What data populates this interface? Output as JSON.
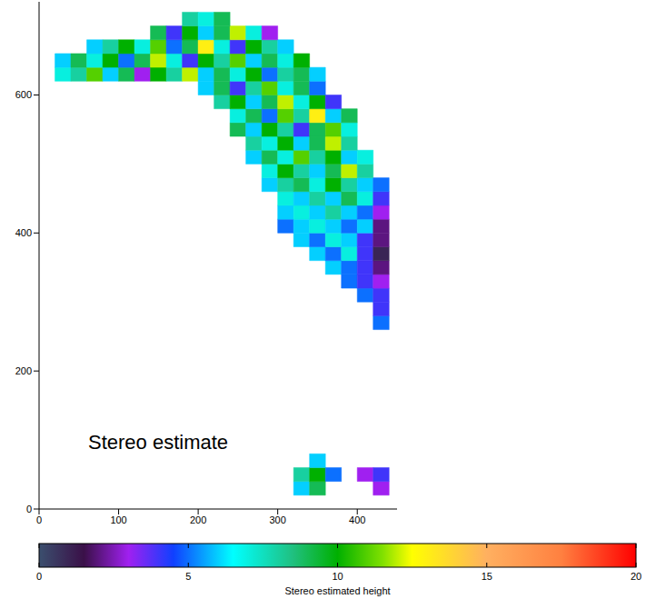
{
  "chart_data": {
    "type": "heatmap",
    "annotation": "Stereo estimate",
    "xlim": [
      0,
      450
    ],
    "ylim": [
      0,
      735
    ],
    "xticks": [
      0,
      100,
      200,
      300,
      400
    ],
    "yticks": [
      0,
      200,
      400,
      600
    ],
    "x_edges": [
      0,
      20,
      40,
      60,
      80,
      100,
      120,
      140,
      160,
      180,
      200,
      220,
      240,
      260,
      280,
      300,
      320,
      340,
      360,
      380,
      400,
      420,
      440
    ],
    "y_edges": [
      0,
      20,
      40,
      60,
      80,
      100,
      120,
      140,
      160,
      180,
      200,
      220,
      240,
      260,
      280,
      300,
      320,
      340,
      360,
      380,
      400,
      420,
      440,
      460,
      480,
      500,
      520,
      540,
      560,
      580,
      600,
      620,
      640,
      660,
      680,
      700,
      720
    ],
    "cells": [
      [
        null,
        null,
        null,
        null,
        null,
        null,
        null,
        null,
        null,
        null,
        null,
        null,
        null,
        null,
        null,
        null,
        null,
        null,
        null,
        null,
        null,
        null
      ],
      [
        null,
        null,
        null,
        null,
        null,
        null,
        null,
        null,
        null,
        null,
        null,
        null,
        null,
        null,
        null,
        null,
        6,
        9,
        null,
        null,
        null,
        3
      ],
      [
        null,
        null,
        null,
        null,
        null,
        null,
        null,
        null,
        null,
        null,
        null,
        null,
        null,
        null,
        null,
        null,
        8,
        10,
        5,
        null,
        3,
        4
      ],
      [
        null,
        null,
        null,
        null,
        null,
        null,
        null,
        null,
        null,
        null,
        null,
        null,
        null,
        null,
        null,
        null,
        null,
        6,
        null,
        null,
        null,
        null
      ],
      [
        null,
        null,
        null,
        null,
        null,
        null,
        null,
        null,
        null,
        null,
        null,
        null,
        null,
        null,
        null,
        null,
        null,
        null,
        null,
        null,
        null,
        null
      ],
      [
        null,
        null,
        null,
        null,
        null,
        null,
        null,
        null,
        null,
        null,
        null,
        null,
        null,
        null,
        null,
        null,
        null,
        null,
        null,
        null,
        null,
        null
      ],
      [
        null,
        null,
        null,
        null,
        null,
        null,
        null,
        null,
        null,
        null,
        null,
        null,
        null,
        null,
        null,
        null,
        null,
        null,
        null,
        null,
        null,
        null
      ],
      [
        null,
        null,
        null,
        null,
        null,
        null,
        null,
        null,
        null,
        null,
        null,
        null,
        null,
        null,
        null,
        null,
        null,
        null,
        null,
        null,
        null,
        null
      ],
      [
        null,
        null,
        null,
        null,
        null,
        null,
        null,
        null,
        null,
        null,
        null,
        null,
        null,
        null,
        null,
        null,
        null,
        null,
        null,
        null,
        null,
        null
      ],
      [
        null,
        null,
        null,
        null,
        null,
        null,
        null,
        null,
        null,
        null,
        null,
        null,
        null,
        null,
        null,
        null,
        null,
        null,
        null,
        null,
        null,
        null
      ],
      [
        null,
        null,
        null,
        null,
        null,
        null,
        null,
        null,
        null,
        null,
        null,
        null,
        null,
        null,
        null,
        null,
        null,
        null,
        null,
        null,
        null,
        null
      ],
      [
        null,
        null,
        null,
        null,
        null,
        null,
        null,
        null,
        null,
        null,
        null,
        null,
        null,
        null,
        null,
        null,
        null,
        null,
        null,
        null,
        null,
        null
      ],
      [
        null,
        null,
        null,
        null,
        null,
        null,
        null,
        null,
        null,
        null,
        null,
        null,
        null,
        null,
        null,
        null,
        null,
        null,
        null,
        null,
        null,
        null
      ],
      [
        null,
        null,
        null,
        null,
        null,
        null,
        null,
        null,
        null,
        null,
        null,
        null,
        null,
        null,
        null,
        null,
        null,
        null,
        null,
        null,
        null,
        5
      ],
      [
        null,
        null,
        null,
        null,
        null,
        null,
        null,
        null,
        null,
        null,
        null,
        null,
        null,
        null,
        null,
        null,
        null,
        null,
        null,
        null,
        null,
        4
      ],
      [
        null,
        null,
        null,
        null,
        null,
        null,
        null,
        null,
        null,
        null,
        null,
        null,
        null,
        null,
        null,
        null,
        null,
        null,
        null,
        null,
        5,
        4
      ],
      [
        null,
        null,
        null,
        null,
        null,
        null,
        null,
        null,
        null,
        null,
        null,
        null,
        null,
        null,
        null,
        null,
        null,
        null,
        null,
        5,
        4,
        3
      ],
      [
        null,
        null,
        null,
        null,
        null,
        null,
        null,
        null,
        null,
        null,
        null,
        null,
        null,
        null,
        null,
        null,
        null,
        null,
        6,
        5,
        4,
        2
      ],
      [
        null,
        null,
        null,
        null,
        null,
        null,
        null,
        null,
        null,
        null,
        null,
        null,
        null,
        null,
        null,
        null,
        null,
        6,
        5,
        7,
        4,
        1
      ],
      [
        null,
        null,
        null,
        null,
        null,
        null,
        null,
        null,
        null,
        null,
        null,
        null,
        null,
        null,
        null,
        null,
        6,
        5,
        7,
        6,
        4,
        2
      ],
      [
        null,
        null,
        null,
        null,
        null,
        null,
        null,
        null,
        null,
        null,
        null,
        null,
        null,
        null,
        null,
        5,
        6,
        7,
        6,
        5,
        6,
        2
      ],
      [
        null,
        null,
        null,
        null,
        null,
        null,
        null,
        null,
        null,
        null,
        null,
        null,
        null,
        null,
        null,
        6,
        7,
        6,
        8,
        6,
        5,
        3
      ],
      [
        null,
        null,
        null,
        null,
        null,
        null,
        null,
        null,
        null,
        null,
        null,
        null,
        null,
        null,
        null,
        7,
        6,
        8,
        6,
        9,
        7,
        4
      ],
      [
        null,
        null,
        null,
        null,
        null,
        null,
        null,
        null,
        null,
        null,
        null,
        null,
        null,
        null,
        6,
        8,
        9,
        7,
        10,
        8,
        6,
        5
      ],
      [
        null,
        null,
        null,
        null,
        null,
        null,
        null,
        null,
        null,
        null,
        null,
        null,
        null,
        null,
        7,
        10,
        8,
        6,
        9,
        12,
        8,
        null
      ],
      [
        null,
        null,
        null,
        null,
        null,
        null,
        null,
        null,
        null,
        null,
        null,
        null,
        null,
        6,
        9,
        7,
        11,
        8,
        10,
        6,
        7,
        null
      ],
      [
        null,
        null,
        null,
        null,
        null,
        null,
        null,
        null,
        null,
        null,
        null,
        null,
        null,
        8,
        7,
        10,
        6,
        9,
        12,
        8,
        null,
        null
      ],
      [
        null,
        null,
        null,
        null,
        null,
        null,
        null,
        null,
        null,
        null,
        null,
        null,
        9,
        6,
        10,
        8,
        4,
        9,
        11,
        7,
        null,
        null
      ],
      [
        null,
        null,
        null,
        null,
        null,
        null,
        null,
        null,
        null,
        null,
        null,
        null,
        7,
        9,
        5,
        11,
        8,
        13,
        6,
        9,
        null,
        null
      ],
      [
        null,
        null,
        null,
        null,
        null,
        null,
        null,
        null,
        null,
        null,
        null,
        8,
        10,
        6,
        9,
        12,
        7,
        10,
        4,
        null,
        null,
        null
      ],
      [
        null,
        null,
        null,
        null,
        null,
        null,
        null,
        null,
        null,
        null,
        6,
        9,
        4,
        8,
        11,
        7,
        9,
        5,
        null,
        null,
        null,
        null
      ],
      [
        null,
        7,
        8,
        11,
        6,
        9,
        3,
        10,
        8,
        12,
        6,
        9,
        7,
        10,
        5,
        8,
        9,
        6,
        null,
        null,
        null,
        null
      ],
      [
        null,
        6,
        9,
        7,
        10,
        5,
        9,
        12,
        7,
        4,
        10,
        8,
        11,
        6,
        9,
        7,
        10,
        null,
        null,
        null,
        null,
        null
      ],
      [
        null,
        null,
        null,
        6,
        8,
        10,
        7,
        11,
        5,
        9,
        13,
        7,
        4,
        10,
        8,
        6,
        null,
        null,
        null,
        null,
        null,
        null
      ],
      [
        null,
        null,
        null,
        null,
        null,
        null,
        null,
        9,
        4,
        10,
        6,
        9,
        12,
        7,
        3,
        null,
        null,
        null,
        null,
        null,
        null,
        null
      ],
      [
        null,
        null,
        null,
        null,
        null,
        null,
        null,
        null,
        null,
        8,
        7,
        9,
        null,
        null,
        null,
        null,
        null,
        null,
        null,
        null,
        null,
        null
      ]
    ],
    "colorbar_label": "Stereo estimated height",
    "colorbar_range": [
      0,
      20
    ],
    "colorbar_ticks": [
      0,
      5,
      10,
      15,
      20
    ]
  }
}
